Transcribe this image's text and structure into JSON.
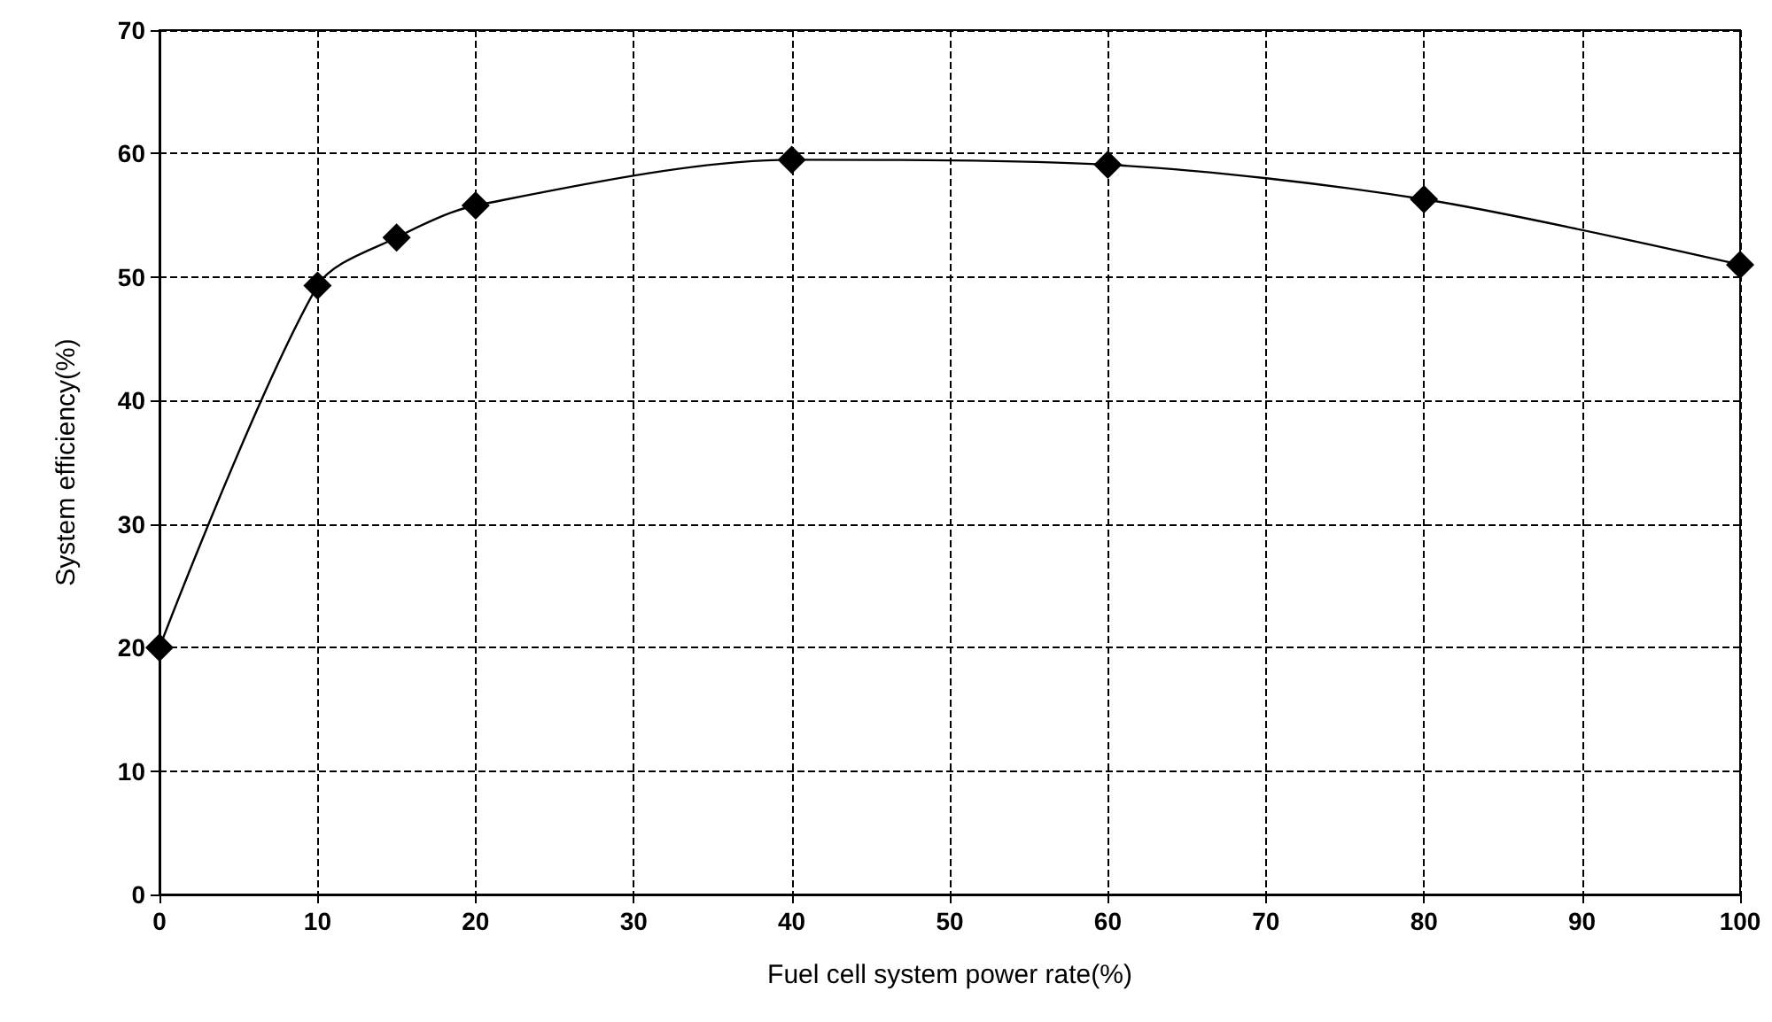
{
  "chart_data": {
    "type": "line",
    "xlabel": "Fuel cell system power rate(%)",
    "ylabel": "System efficiency(%)",
    "x": [
      0,
      10,
      15,
      20,
      40,
      60,
      80,
      100
    ],
    "series": [
      {
        "color": "#000000",
        "values": [
          20,
          49.3,
          53.2,
          55.8,
          59.5,
          59.1,
          56.3,
          51
        ]
      }
    ],
    "xlim": [
      0,
      100
    ],
    "xticks": [
      0,
      10,
      20,
      30,
      40,
      50,
      60,
      70,
      80,
      90,
      100
    ],
    "ylim": [
      0,
      70
    ],
    "yticks": [
      0,
      10,
      20,
      30,
      40,
      50,
      60,
      70
    ],
    "grid": true,
    "marker": "diamond",
    "line_style": "solid"
  }
}
